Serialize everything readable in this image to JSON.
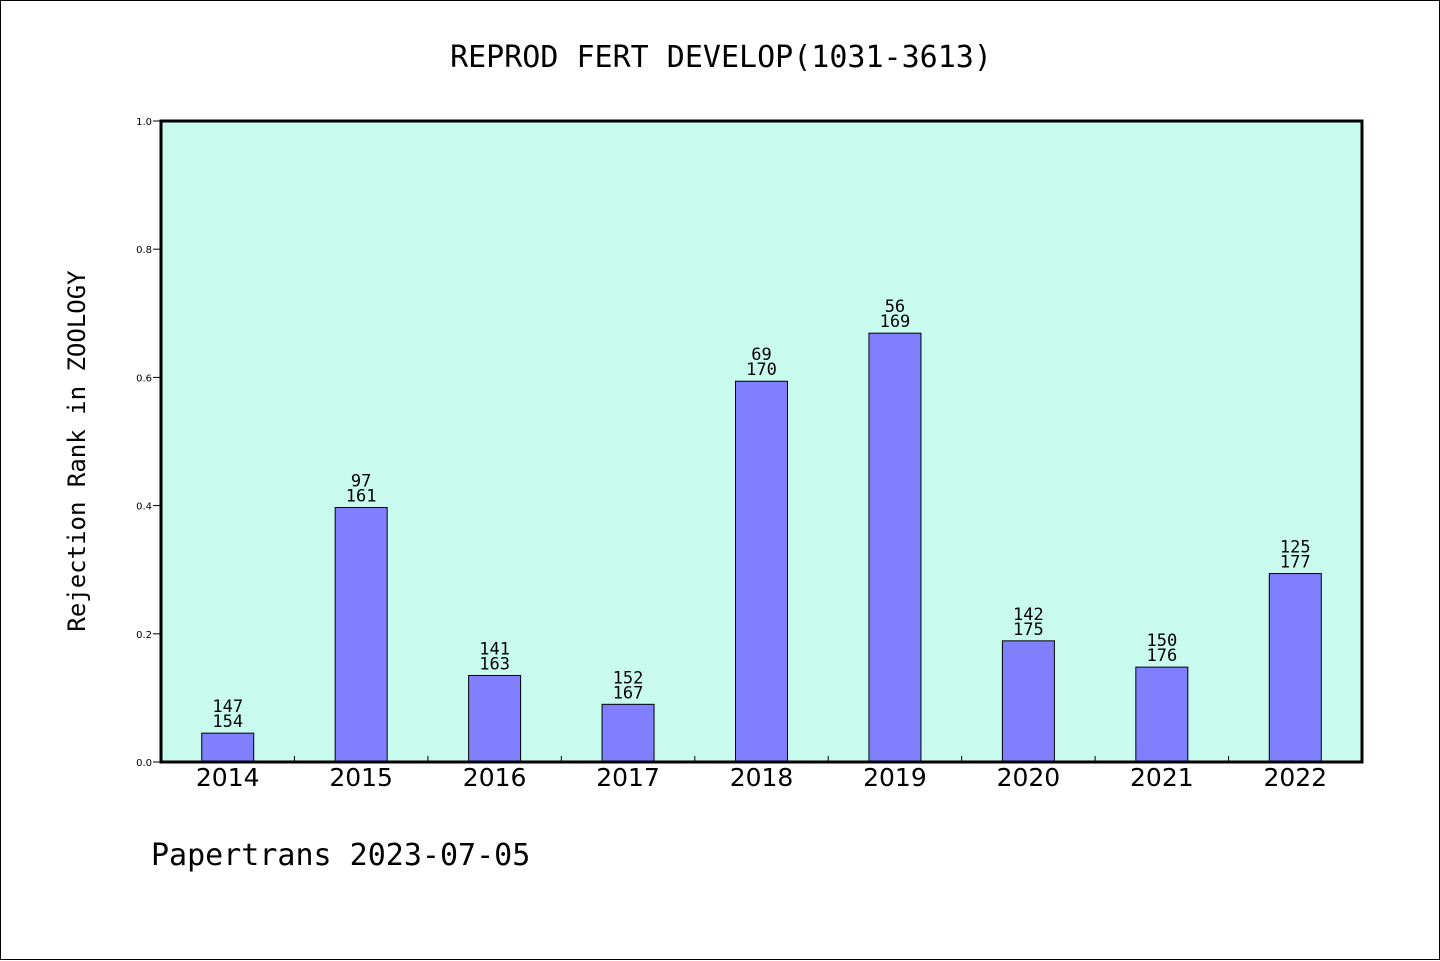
{
  "chart_data": {
    "type": "bar",
    "title": "REPROD FERT DEVELOP(1031-3613)",
    "ylabel": "Rejection Rank in ZOOLOGY",
    "xlabel": "",
    "categories": [
      "2014",
      "2015",
      "2016",
      "2017",
      "2018",
      "2019",
      "2020",
      "2021",
      "2022"
    ],
    "values": [
      0.045,
      0.397,
      0.135,
      0.09,
      0.594,
      0.669,
      0.189,
      0.148,
      0.294
    ],
    "label_top": [
      "147",
      "97",
      "141",
      "152",
      "69",
      "56",
      "142",
      "150",
      "125"
    ],
    "label_bottom": [
      "154",
      "161",
      "163",
      "167",
      "170",
      "169",
      "175",
      "176",
      "177"
    ],
    "ylim": [
      0.0,
      1.0
    ],
    "yticks": [
      "0.0",
      "0.2",
      "0.4",
      "0.6",
      "0.8",
      "1.0"
    ],
    "grid": false,
    "colors": {
      "plot_background": "#c8fbee",
      "bar": "#8080ff",
      "bar_edge": "#000000"
    }
  },
  "footer": "Papertrans 2023-07-05"
}
